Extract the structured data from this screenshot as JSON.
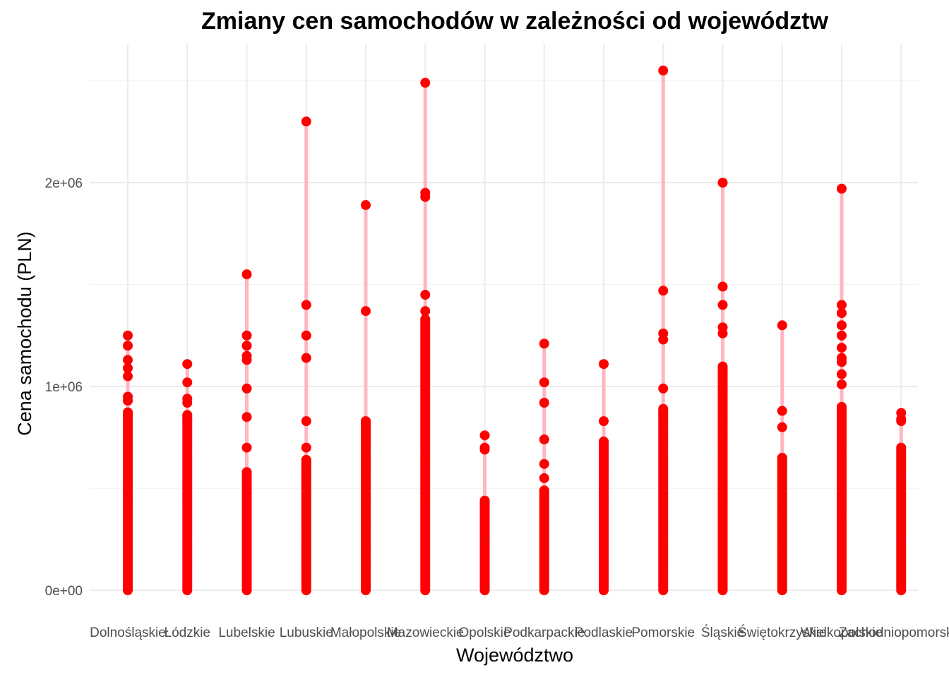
{
  "chart_data": {
    "type": "scatter",
    "title": "Zmiany cen samochodów w zależności od województw",
    "xlabel": "Województwo",
    "ylabel": "Cena samochodu (PLN)",
    "ylim": [
      -100000,
      2600000
    ],
    "y_ticks": [
      0,
      1000000,
      2000000
    ],
    "y_tick_labels": [
      "0e+00",
      "1e+06",
      "2e+06"
    ],
    "grid": true,
    "legend": "none",
    "point_color": "#ff0000",
    "segment_color": "#ffb6c1",
    "categories": [
      "Dolnośląskie",
      "Łódzkie",
      "Lubelskie",
      "Lubuskie",
      "Małopolskie",
      "Mazowieckie",
      "Opolskie",
      "Podkarpackie",
      "Podlaskie",
      "Pomorskie",
      "Śląskie",
      "Świętokrzyskie",
      "Wielkopolskie",
      "Zachodniopomorskie"
    ],
    "series": [
      {
        "category": "Dolnośląskie",
        "max": 1250000,
        "min": 0,
        "dense_top": 880000,
        "values": [
          1250000,
          1200000,
          1130000,
          1090000,
          1050000,
          950000,
          930000,
          870000
        ]
      },
      {
        "category": "Łódzkie",
        "max": 1110000,
        "min": 0,
        "dense_top": 860000,
        "values": [
          1110000,
          1020000,
          940000,
          920000,
          860000,
          840000
        ]
      },
      {
        "category": "Lubelskie",
        "max": 1550000,
        "min": 0,
        "dense_top": 580000,
        "values": [
          1550000,
          1250000,
          1200000,
          1150000,
          1130000,
          990000,
          850000,
          700000,
          580000,
          560000
        ]
      },
      {
        "category": "Lubuskie",
        "max": 2300000,
        "min": 0,
        "dense_top": 640000,
        "values": [
          2300000,
          1400000,
          1250000,
          1140000,
          830000,
          700000,
          640000,
          620000,
          580000,
          560000
        ]
      },
      {
        "category": "Małopolskie",
        "max": 1890000,
        "min": 0,
        "dense_top": 830000,
        "values": [
          1890000,
          1370000,
          830000,
          810000
        ]
      },
      {
        "category": "Mazowieckie",
        "max": 2490000,
        "min": 0,
        "dense_top": 1330000,
        "values": [
          2490000,
          1950000,
          1930000,
          1450000,
          1370000,
          1330000
        ]
      },
      {
        "category": "Opolskie",
        "max": 760000,
        "min": 0,
        "dense_top": 440000,
        "values": [
          760000,
          700000,
          690000,
          440000
        ]
      },
      {
        "category": "Podkarpackie",
        "max": 1210000,
        "min": 0,
        "dense_top": 490000,
        "values": [
          1210000,
          1020000,
          920000,
          740000,
          620000,
          550000,
          490000
        ]
      },
      {
        "category": "Podlaskie",
        "max": 1110000,
        "min": 0,
        "dense_top": 730000,
        "values": [
          1110000,
          830000,
          730000,
          700000,
          660000
        ]
      },
      {
        "category": "Pomorskie",
        "max": 2550000,
        "min": 0,
        "dense_top": 890000,
        "values": [
          2550000,
          1470000,
          1260000,
          1230000,
          990000,
          890000,
          860000
        ]
      },
      {
        "category": "Śląskie",
        "max": 2000000,
        "min": 0,
        "dense_top": 1100000,
        "values": [
          2000000,
          1490000,
          1400000,
          1290000,
          1260000
        ]
      },
      {
        "category": "Świętokrzyskie",
        "max": 1300000,
        "min": 0,
        "dense_top": 650000,
        "values": [
          1300000,
          880000,
          800000,
          650000,
          620000
        ]
      },
      {
        "category": "Wielkopolskie",
        "max": 1970000,
        "min": 0,
        "dense_top": 900000,
        "values": [
          1970000,
          1400000,
          1360000,
          1300000,
          1250000,
          1190000,
          1140000,
          1120000,
          1060000,
          1010000
        ]
      },
      {
        "category": "Zachodniopomorskie",
        "max": 870000,
        "min": 0,
        "dense_top": 700000,
        "values": [
          870000,
          840000,
          830000,
          700000
        ]
      }
    ]
  }
}
